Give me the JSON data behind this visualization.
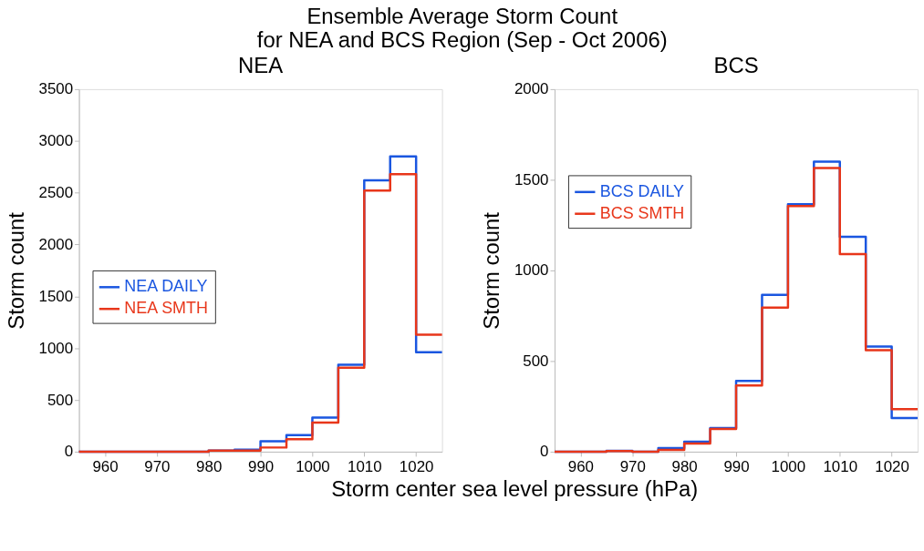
{
  "chart_data": [
    {
      "type": "histogram",
      "title": "Ensemble Average Storm Count\nfor NEA and BCS Region (Sep - Oct 2006)",
      "subtitle": "NEA",
      "xlabel": "Storm center sea level pressure (hPa)",
      "ylabel": "Storm count",
      "bins": [
        955,
        960,
        965,
        970,
        975,
        980,
        985,
        990,
        995,
        1000,
        1005,
        1010,
        1015,
        1020,
        1025
      ],
      "series": [
        {
          "name": "NEA DAILY",
          "color": "#1a56e0",
          "values": [
            0,
            0,
            0,
            0,
            0,
            10,
            20,
            100,
            160,
            330,
            840,
            2620,
            2850,
            960
          ]
        },
        {
          "name": "NEA SMTH",
          "color": "#e8361a",
          "values": [
            0,
            0,
            0,
            0,
            0,
            10,
            10,
            40,
            120,
            280,
            810,
            2520,
            2680,
            1130
          ]
        }
      ],
      "xlim": [
        955,
        1025
      ],
      "xticks": [
        960,
        970,
        980,
        990,
        1000,
        1010,
        1020
      ],
      "ylim": [
        0,
        3500
      ],
      "yticks": [
        0,
        500,
        1000,
        1500,
        2000,
        2500,
        3000,
        3500
      ],
      "grid": false,
      "legend": "left"
    },
    {
      "type": "histogram",
      "subtitle": "BCS",
      "ylabel": "Storm count",
      "bins": [
        955,
        960,
        965,
        970,
        975,
        980,
        985,
        990,
        995,
        1000,
        1005,
        1010,
        1015,
        1020,
        1025
      ],
      "series": [
        {
          "name": "BCS DAILY",
          "color": "#1a56e0",
          "values": [
            0,
            0,
            5,
            0,
            20,
            55,
            130,
            390,
            865,
            1365,
            1600,
            1185,
            580,
            185
          ]
        },
        {
          "name": "BCS SMTH",
          "color": "#e8361a",
          "values": [
            0,
            0,
            3,
            0,
            10,
            45,
            125,
            365,
            795,
            1355,
            1565,
            1090,
            560,
            235
          ]
        }
      ],
      "xlim": [
        955,
        1025
      ],
      "xticks": [
        960,
        970,
        980,
        990,
        1000,
        1010,
        1020
      ],
      "ylim": [
        0,
        2000
      ],
      "yticks": [
        0,
        500,
        1000,
        1500,
        2000
      ],
      "grid": false,
      "legend": "top left"
    }
  ]
}
